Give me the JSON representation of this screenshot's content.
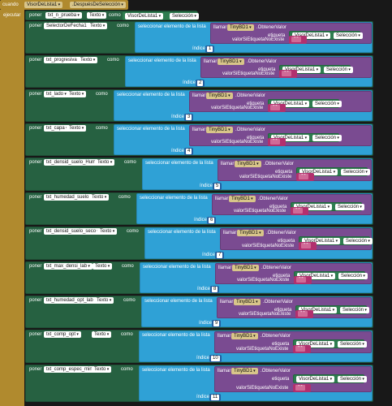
{
  "event": {
    "when_label": "cuando",
    "component": "VisorDeLista1",
    "event_name": ".DespuésDeSelección",
    "do_label": "ejecutar"
  },
  "first_set": {
    "set_label": "poner",
    "component": "txt_n_prueba",
    "property": "Texto",
    "as_label": "como",
    "value_component": "VisorDeLista1",
    "value_property": "Selección"
  },
  "labels": {
    "set": "poner",
    "as": "como",
    "select_item": "seleccionar elemento de la lista",
    "list": "lista",
    "index": "índice",
    "call": "llamar",
    "db": "TinyBD1",
    "get_value": ".ObtenerValor",
    "tag": "etiqueta",
    "value_if_missing": "valorSiEtiquetaNoExiste",
    "tag_component": "VisorDeLista1",
    "tag_property": "Selección",
    "selector_component": "SelectorDeFecha1",
    "property": "Texto"
  },
  "rows": [
    {
      "component": "txt_progresiva",
      "index": "2"
    },
    {
      "component": "txt_lado",
      "index": "3"
    },
    {
      "component": "txt_capa",
      "index": "4"
    },
    {
      "component": "txt_densid_suelo_Hum",
      "index": "5"
    },
    {
      "component": "txt_humedad_suelo",
      "index": "6"
    },
    {
      "component": "txt_densid_suelo_seco",
      "index": "7"
    },
    {
      "component": "txt_max_densi_lab",
      "index": "8"
    },
    {
      "component": "txt_humedad_opt_lab",
      "index": "9"
    },
    {
      "component": "txt_comp_opt",
      "index": "10"
    },
    {
      "component": "txt_comp_espec_min",
      "index": "11"
    }
  ],
  "first_row_index": "1",
  "colors": {
    "event": "#b08a2e",
    "set_block": "#266141",
    "list_block": "#2fa1d6",
    "db_block": "#7a4b91",
    "string_block": "#b2306e",
    "number_block": "#235fa0"
  }
}
